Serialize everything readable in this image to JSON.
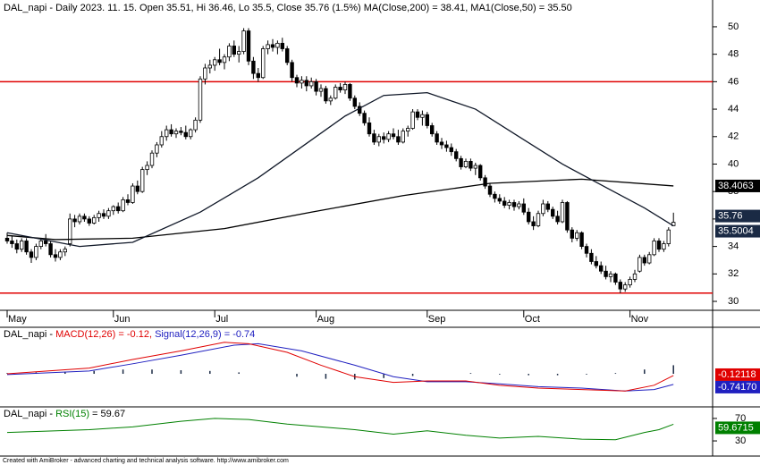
{
  "chart_data": {
    "type": "candlestick",
    "title": "DAL_napi - Daily 2023. 11. 15. Open 35.51, Hi 36.46, Lo 35.5, Close 35.76 (1.5%) MA(Close,200) = 38.41, MA1(Close,50) = 35.50",
    "footer": "Created with AmiBroker - advanced charting and technical analysis software. http://www.amibroker.com",
    "months": [
      "May",
      "Jun",
      "Jul",
      "Aug",
      "Sep",
      "Oct",
      "Nov"
    ],
    "month_index": [
      0,
      22,
      43,
      64,
      87,
      107,
      129
    ],
    "ylim": [
      29.48,
      51.95
    ],
    "yticks": [
      30,
      32,
      34,
      36,
      38,
      40,
      42,
      44,
      46,
      48,
      50
    ],
    "close_label": "35.76",
    "hlines": [
      46,
      30.6
    ],
    "hline_color": "#e00000",
    "candles": [
      [
        34.6,
        35.0,
        34.2,
        34.4
      ],
      [
        34.4,
        34.8,
        33.9,
        34.2
      ],
      [
        34.2,
        34.5,
        33.5,
        33.8
      ],
      [
        33.8,
        34.6,
        33.6,
        34.4
      ],
      [
        34.4,
        34.6,
        33.4,
        33.6
      ],
      [
        33.6,
        33.8,
        32.8,
        33.2
      ],
      [
        33.2,
        34.2,
        33.0,
        34.0
      ],
      [
        34.0,
        34.6,
        33.8,
        34.4
      ],
      [
        34.4,
        34.9,
        34.0,
        34.2
      ],
      [
        34.2,
        34.4,
        33.2,
        33.4
      ],
      [
        33.4,
        33.8,
        32.9,
        33.2
      ],
      [
        33.2,
        33.8,
        33.0,
        33.6
      ],
      [
        33.6,
        34.0,
        33.3,
        33.8
      ],
      [
        34.2,
        36.4,
        34.0,
        36.0
      ],
      [
        36.0,
        36.3,
        35.4,
        35.8
      ],
      [
        35.8,
        36.4,
        35.6,
        36.2
      ],
      [
        36.2,
        36.4,
        35.8,
        36.0
      ],
      [
        36.0,
        36.2,
        35.5,
        35.7
      ],
      [
        35.7,
        36.3,
        35.6,
        36.1
      ],
      [
        36.1,
        36.6,
        35.8,
        36.4
      ],
      [
        36.4,
        36.7,
        36.0,
        36.2
      ],
      [
        36.2,
        36.8,
        36.0,
        36.6
      ],
      [
        36.6,
        37.0,
        36.3,
        36.9
      ],
      [
        36.9,
        37.2,
        36.4,
        36.6
      ],
      [
        36.6,
        37.6,
        36.5,
        37.4
      ],
      [
        37.4,
        37.8,
        37.0,
        37.2
      ],
      [
        37.2,
        38.6,
        37.1,
        38.4
      ],
      [
        38.4,
        38.8,
        37.8,
        38.0
      ],
      [
        38.0,
        39.8,
        37.9,
        39.6
      ],
      [
        39.6,
        40.2,
        39.2,
        39.9
      ],
      [
        39.9,
        41.0,
        39.7,
        40.8
      ],
      [
        40.8,
        41.6,
        40.5,
        41.4
      ],
      [
        41.4,
        42.4,
        41.2,
        42.0
      ],
      [
        42.0,
        42.8,
        41.7,
        42.5
      ],
      [
        42.5,
        42.9,
        42.0,
        42.2
      ],
      [
        42.2,
        42.6,
        41.9,
        42.4
      ],
      [
        42.4,
        42.7,
        42.1,
        42.3
      ],
      [
        42.3,
        42.8,
        41.8,
        42.0
      ],
      [
        42.0,
        42.6,
        41.8,
        42.5
      ],
      [
        42.5,
        43.4,
        42.3,
        43.2
      ],
      [
        43.2,
        46.4,
        43.0,
        46.2
      ],
      [
        46.2,
        47.3,
        45.8,
        47.0
      ],
      [
        47.0,
        47.6,
        46.6,
        47.2
      ],
      [
        47.2,
        47.8,
        46.8,
        47.6
      ],
      [
        47.6,
        48.4,
        47.2,
        47.4
      ],
      [
        47.4,
        48.0,
        46.9,
        47.8
      ],
      [
        47.8,
        48.8,
        47.5,
        48.6
      ],
      [
        48.6,
        49.0,
        47.8,
        48.0
      ],
      [
        48.0,
        48.6,
        47.4,
        48.2
      ],
      [
        48.2,
        49.9,
        48.0,
        49.7
      ],
      [
        49.7,
        49.9,
        47.2,
        47.5
      ],
      [
        47.5,
        47.8,
        46.2,
        46.6
      ],
      [
        46.6,
        47.0,
        46.0,
        46.3
      ],
      [
        46.3,
        48.6,
        46.2,
        48.4
      ],
      [
        48.4,
        49.0,
        48.0,
        48.7
      ],
      [
        48.7,
        49.1,
        48.2,
        48.5
      ],
      [
        48.5,
        49.0,
        48.0,
        48.8
      ],
      [
        48.8,
        49.2,
        48.2,
        48.4
      ],
      [
        48.4,
        48.6,
        47.2,
        47.4
      ],
      [
        47.4,
        47.6,
        46.0,
        46.3
      ],
      [
        46.3,
        46.5,
        45.6,
        45.9
      ],
      [
        45.9,
        46.4,
        45.5,
        46.1
      ],
      [
        46.1,
        46.4,
        45.3,
        45.7
      ],
      [
        45.7,
        46.3,
        45.5,
        46.0
      ],
      [
        46.0,
        46.2,
        45.0,
        45.3
      ],
      [
        45.3,
        45.8,
        44.9,
        45.5
      ],
      [
        45.5,
        45.7,
        44.4,
        44.6
      ],
      [
        44.6,
        45.0,
        44.3,
        44.8
      ],
      [
        44.8,
        45.8,
        44.7,
        45.6
      ],
      [
        45.6,
        45.9,
        45.2,
        45.4
      ],
      [
        45.4,
        46.0,
        45.1,
        45.8
      ],
      [
        45.8,
        45.9,
        44.6,
        44.8
      ],
      [
        44.8,
        45.0,
        44.0,
        44.2
      ],
      [
        44.2,
        44.5,
        43.5,
        43.7
      ],
      [
        43.7,
        43.9,
        42.8,
        43.0
      ],
      [
        43.0,
        43.4,
        42.0,
        42.2
      ],
      [
        42.2,
        42.5,
        41.4,
        41.6
      ],
      [
        41.6,
        42.2,
        41.3,
        42.0
      ],
      [
        42.0,
        42.3,
        41.5,
        41.8
      ],
      [
        41.8,
        42.4,
        41.6,
        42.2
      ],
      [
        42.2,
        42.6,
        41.8,
        42.0
      ],
      [
        42.0,
        42.5,
        41.4,
        41.6
      ],
      [
        41.6,
        42.6,
        41.5,
        42.4
      ],
      [
        42.4,
        42.8,
        42.0,
        42.6
      ],
      [
        42.6,
        44.0,
        42.5,
        43.8
      ],
      [
        43.8,
        44.0,
        43.2,
        43.4
      ],
      [
        43.4,
        43.9,
        42.8,
        43.6
      ],
      [
        43.6,
        43.8,
        42.6,
        42.8
      ],
      [
        42.8,
        43.0,
        42.0,
        42.2
      ],
      [
        42.2,
        42.4,
        41.4,
        41.6
      ],
      [
        41.6,
        41.9,
        41.1,
        41.4
      ],
      [
        41.4,
        41.7,
        40.9,
        41.2
      ],
      [
        41.2,
        41.5,
        40.6,
        40.9
      ],
      [
        40.9,
        41.1,
        40.2,
        40.4
      ],
      [
        40.4,
        40.6,
        39.6,
        39.8
      ],
      [
        39.8,
        40.4,
        39.7,
        40.2
      ],
      [
        40.2,
        40.4,
        39.5,
        39.7
      ],
      [
        39.7,
        40.1,
        39.2,
        39.9
      ],
      [
        39.9,
        40.0,
        38.8,
        39.0
      ],
      [
        39.0,
        39.2,
        38.2,
        38.4
      ],
      [
        38.4,
        38.6,
        37.6,
        37.8
      ],
      [
        37.8,
        38.0,
        37.2,
        37.5
      ],
      [
        37.5,
        37.8,
        37.1,
        37.3
      ],
      [
        37.3,
        37.6,
        36.8,
        37.0
      ],
      [
        37.0,
        37.4,
        36.7,
        37.2
      ],
      [
        37.2,
        37.4,
        36.6,
        36.9
      ],
      [
        36.9,
        37.3,
        36.7,
        37.1
      ],
      [
        37.1,
        37.5,
        36.3,
        36.5
      ],
      [
        36.5,
        36.8,
        35.6,
        35.8
      ],
      [
        35.8,
        36.2,
        35.2,
        35.5
      ],
      [
        35.5,
        36.6,
        35.4,
        36.4
      ],
      [
        36.4,
        37.4,
        36.2,
        37.1
      ],
      [
        37.1,
        37.3,
        36.5,
        36.7
      ],
      [
        36.7,
        36.9,
        36.0,
        36.2
      ],
      [
        36.2,
        36.6,
        35.6,
        35.8
      ],
      [
        35.8,
        37.4,
        35.7,
        37.2
      ],
      [
        37.2,
        37.3,
        35.0,
        35.2
      ],
      [
        35.2,
        35.4,
        34.3,
        34.6
      ],
      [
        34.6,
        35.2,
        34.4,
        35.0
      ],
      [
        35.0,
        35.1,
        33.8,
        34.0
      ],
      [
        34.0,
        34.2,
        33.2,
        33.5
      ],
      [
        33.5,
        33.8,
        32.7,
        32.9
      ],
      [
        32.9,
        33.3,
        32.4,
        32.6
      ],
      [
        32.6,
        32.9,
        32.0,
        32.2
      ],
      [
        32.2,
        32.6,
        31.6,
        31.8
      ],
      [
        31.8,
        32.2,
        31.4,
        32.0
      ],
      [
        32.0,
        32.1,
        31.2,
        31.4
      ],
      [
        31.4,
        31.6,
        30.6,
        30.9
      ],
      [
        30.9,
        31.4,
        30.7,
        31.2
      ],
      [
        31.2,
        31.8,
        31.0,
        31.6
      ],
      [
        31.6,
        32.3,
        31.4,
        32.0
      ],
      [
        32.2,
        33.4,
        32.1,
        33.2
      ],
      [
        33.2,
        33.4,
        32.6,
        32.8
      ],
      [
        32.8,
        33.6,
        32.7,
        33.4
      ],
      [
        33.4,
        34.6,
        33.3,
        34.4
      ],
      [
        34.4,
        34.6,
        33.6,
        33.8
      ],
      [
        33.8,
        34.4,
        33.6,
        34.2
      ],
      [
        34.2,
        35.4,
        34.0,
        35.2
      ],
      [
        35.51,
        36.46,
        35.5,
        35.76
      ]
    ],
    "ma_lines": [
      {
        "name": "MA(Close,200)",
        "color": "#000000",
        "x": [
          0,
          10,
          26,
          45,
          63,
          82,
          100,
          119,
          138
        ],
        "values": [
          34.8,
          34.5,
          34.6,
          35.3,
          36.5,
          37.7,
          38.6,
          38.9,
          38.4063
        ],
        "last_label": "38.4063",
        "box_color": "#000000"
      },
      {
        "name": "MA1(Close,50)",
        "color": "#101828",
        "x": [
          0,
          15,
          26,
          40,
          52,
          62,
          70,
          78,
          87,
          97,
          106,
          115,
          124,
          132,
          138
        ],
        "values": [
          35.0,
          34.0,
          34.3,
          36.5,
          39.0,
          41.5,
          43.5,
          45.0,
          45.2,
          44.0,
          42.0,
          40.0,
          38.3,
          36.8,
          35.5004
        ],
        "last_label": "35.5004",
        "box_color": "#1a2a44"
      }
    ],
    "macd_panel": {
      "prefix": "DAL_napi - ",
      "macd_label": "MACD(12,26) = -0.12,",
      "signal_label": "Signal(12,26,9) = -0.74",
      "ylim": [
        -2.31,
        3.125
      ],
      "macd": {
        "color": "#e00000",
        "x": [
          0,
          17,
          26,
          36,
          45,
          50,
          58,
          65,
          72,
          80,
          87,
          95,
          102,
          110,
          119,
          128,
          134,
          138
        ],
        "values": [
          0.0,
          0.4,
          1.0,
          1.6,
          2.2,
          2.1,
          1.5,
          0.6,
          -0.2,
          -0.6,
          -0.5,
          -0.5,
          -0.8,
          -1.0,
          -1.1,
          -1.2,
          -0.8,
          -0.12118
        ],
        "last_label": "-0.12118"
      },
      "signal": {
        "color": "#2020c0",
        "x": [
          0,
          17,
          26,
          36,
          47,
          52,
          61,
          72,
          80,
          87,
          95,
          102,
          110,
          119,
          128,
          134,
          138
        ],
        "values": [
          -0.05,
          0.2,
          0.7,
          1.3,
          2.0,
          2.1,
          1.6,
          0.6,
          -0.2,
          -0.55,
          -0.55,
          -0.7,
          -0.9,
          -1.0,
          -1.2,
          -1.1,
          -0.7417
        ],
        "last_label": "-0.74170"
      },
      "hist": {
        "color": "#1a2a44",
        "x": [
          0,
          6,
          12,
          18,
          24,
          30,
          36,
          42,
          48,
          54,
          60,
          66,
          72,
          78,
          84,
          90,
          96,
          102,
          108,
          114,
          120,
          126,
          132,
          138
        ],
        "values": [
          0.05,
          0.1,
          0.15,
          0.2,
          0.3,
          0.3,
          0.25,
          0.2,
          0.1,
          0.0,
          -0.2,
          -0.35,
          -0.4,
          -0.3,
          -0.15,
          0.0,
          0.05,
          -0.05,
          -0.1,
          -0.1,
          -0.05,
          0.05,
          0.3,
          0.6
        ]
      }
    },
    "rsi_panel": {
      "prefix": "DAL_napi - ",
      "rsi_label": "RSI(15)",
      "value_text": " = 59.67",
      "ylim": [
        3,
        89
      ],
      "yticks": [
        30,
        70
      ],
      "rsi": {
        "color": "#008000",
        "x": [
          0,
          17,
          26,
          36,
          43,
          50,
          58,
          65,
          72,
          80,
          87,
          95,
          102,
          110,
          119,
          126,
          132,
          135,
          138
        ],
        "values": [
          45,
          50,
          55,
          65,
          70,
          68,
          60,
          55,
          50,
          42,
          48,
          40,
          35,
          38,
          33,
          32,
          45,
          50,
          59.6715
        ],
        "last_label": "59.6715"
      }
    }
  }
}
